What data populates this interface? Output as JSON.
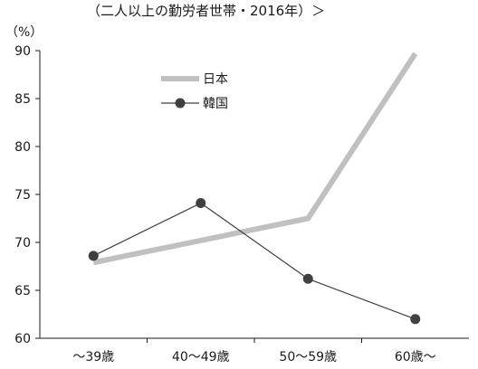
{
  "chart_data": {
    "type": "line",
    "subtitle": "（二人以上の勤労者世帯・2016年）＞",
    "y_unit_label": "（%）",
    "categories": [
      "～39歳",
      "40～49歳",
      "50～59歳",
      "60歳～"
    ],
    "ylim": [
      60,
      90
    ],
    "y_ticks": [
      60,
      65,
      70,
      75,
      80,
      85,
      90
    ],
    "grid": false,
    "legend_position": "top-left",
    "series": [
      {
        "name": "日本",
        "values": [
          67.9,
          70.2,
          72.5,
          89.7
        ],
        "color": "#c0c0c0",
        "marker": "none"
      },
      {
        "name": "韓国",
        "values": [
          68.6,
          74.1,
          66.2,
          62.0
        ],
        "color": "#404040",
        "marker": "circle"
      }
    ]
  }
}
